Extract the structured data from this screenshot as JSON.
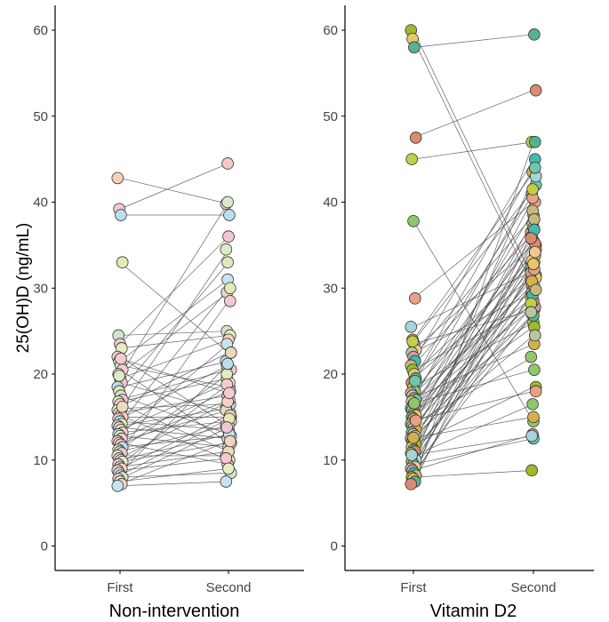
{
  "chart_data": {
    "type": "scatter",
    "description_of_marks": "paired points connected by lines (first vs second measurement)",
    "ylabel": "25(OH)D (ng/mL)",
    "ylim": [
      0,
      62
    ],
    "yticks": [
      0,
      10,
      20,
      30,
      40,
      50,
      60
    ],
    "categories": [
      "First",
      "Second"
    ],
    "grid": false,
    "panels": [
      {
        "label": "Non-intervention",
        "pairs": [
          [
            42.8,
            39.8
          ],
          [
            39.2,
            44.5
          ],
          [
            38.5,
            38.5
          ],
          [
            33.0,
            22.5
          ],
          [
            24.5,
            25.0
          ],
          [
            23.5,
            36.0
          ],
          [
            23.0,
            24.5
          ],
          [
            22.0,
            14.0
          ],
          [
            21.5,
            31.0
          ],
          [
            21.0,
            18.5
          ],
          [
            20.5,
            12.0
          ],
          [
            20.0,
            29.5
          ],
          [
            19.5,
            24.0
          ],
          [
            19.0,
            15.5
          ],
          [
            18.5,
            21.5
          ],
          [
            18.0,
            33.0
          ],
          [
            17.5,
            13.0
          ],
          [
            17.0,
            20.5
          ],
          [
            16.8,
            19.5
          ],
          [
            16.5,
            11.0
          ],
          [
            16.0,
            16.5
          ],
          [
            15.8,
            34.5
          ],
          [
            15.5,
            17.5
          ],
          [
            15.2,
            10.0
          ],
          [
            15.0,
            15.0
          ],
          [
            14.8,
            21.0
          ],
          [
            14.5,
            13.5
          ],
          [
            14.2,
            30.0
          ],
          [
            14.0,
            16.0
          ],
          [
            13.8,
            12.5
          ],
          [
            13.5,
            19.0
          ],
          [
            13.2,
            14.5
          ],
          [
            13.0,
            23.5
          ],
          [
            12.8,
            11.5
          ],
          [
            12.5,
            18.0
          ],
          [
            12.2,
            15.8
          ],
          [
            12.0,
            9.5
          ],
          [
            11.8,
            17.0
          ],
          [
            11.5,
            12.8
          ],
          [
            11.2,
            20.0
          ],
          [
            11.0,
            14.0
          ],
          [
            10.8,
            28.5
          ],
          [
            10.5,
            10.5
          ],
          [
            10.2,
            16.8
          ],
          [
            10.0,
            13.0
          ],
          [
            9.8,
            12.0
          ],
          [
            9.5,
            18.8
          ],
          [
            9.2,
            11.0
          ],
          [
            9.0,
            15.2
          ],
          [
            8.8,
            10.2
          ],
          [
            8.5,
            21.2
          ],
          [
            8.2,
            14.8
          ],
          [
            8.0,
            8.5
          ],
          [
            7.8,
            13.8
          ],
          [
            7.5,
            9.0
          ],
          [
            7.2,
            12.2
          ],
          [
            7.0,
            7.5
          ],
          [
            19.8,
            40.0
          ],
          [
            21.8,
            17.8
          ],
          [
            16.2,
            22.5
          ]
        ],
        "colors": [
          "#f6d0b8",
          "#f7c7c9",
          "#b9def0",
          "#e3e9b7",
          "#cfe6cc",
          "#f2c7cf",
          "#e6ecc0",
          "#f4d2c3",
          "#c5e4ee",
          "#dbeac8",
          "#f3cbd0",
          "#ecd9bd"
        ]
      },
      {
        "label": "Vitamin D2",
        "pairs": [
          [
            60.0,
            31.0
          ],
          [
            59.0,
            30.0
          ],
          [
            58.0,
            59.5
          ],
          [
            47.5,
            53.0
          ],
          [
            45.0,
            47.0
          ],
          [
            37.8,
            14.5
          ],
          [
            28.8,
            40.0
          ],
          [
            25.5,
            32.0
          ],
          [
            24.0,
            43.5
          ],
          [
            23.5,
            27.5
          ],
          [
            22.8,
            35.0
          ],
          [
            22.5,
            29.5
          ],
          [
            22.0,
            38.5
          ],
          [
            21.5,
            45.0
          ],
          [
            21.0,
            36.5
          ],
          [
            20.5,
            28.0
          ],
          [
            20.0,
            33.0
          ],
          [
            19.5,
            31.5
          ],
          [
            19.0,
            41.0
          ],
          [
            18.5,
            26.0
          ],
          [
            18.0,
            34.0
          ],
          [
            17.8,
            29.0
          ],
          [
            17.5,
            37.5
          ],
          [
            17.2,
            23.5
          ],
          [
            17.0,
            42.0
          ],
          [
            16.8,
            30.5
          ],
          [
            16.5,
            35.5
          ],
          [
            16.2,
            27.8
          ],
          [
            16.0,
            32.5
          ],
          [
            15.8,
            39.0
          ],
          [
            15.5,
            25.5
          ],
          [
            15.2,
            31.2
          ],
          [
            15.0,
            36.0
          ],
          [
            14.8,
            28.5
          ],
          [
            14.5,
            33.8
          ],
          [
            14.2,
            22.0
          ],
          [
            14.0,
            40.5
          ],
          [
            13.8,
            30.2
          ],
          [
            13.5,
            34.5
          ],
          [
            13.2,
            27.0
          ],
          [
            13.0,
            37.0
          ],
          [
            12.8,
            24.5
          ],
          [
            12.5,
            31.8
          ],
          [
            12.2,
            29.2
          ],
          [
            12.0,
            38.0
          ],
          [
            11.8,
            18.5
          ],
          [
            11.5,
            33.2
          ],
          [
            11.2,
            26.8
          ],
          [
            11.0,
            35.2
          ],
          [
            10.8,
            28.2
          ],
          [
            10.5,
            16.5
          ],
          [
            10.2,
            32.2
          ],
          [
            10.0,
            43.0
          ],
          [
            9.8,
            30.8
          ],
          [
            9.5,
            12.5
          ],
          [
            9.2,
            34.2
          ],
          [
            9.0,
            27.2
          ],
          [
            8.8,
            13.0
          ],
          [
            8.5,
            36.8
          ],
          [
            8.2,
            29.8
          ],
          [
            8.0,
            8.8
          ],
          [
            7.8,
            32.8
          ],
          [
            7.5,
            47.0
          ],
          [
            7.2,
            35.8
          ],
          [
            23.8,
            41.5
          ],
          [
            16.6,
            20.5
          ],
          [
            14.6,
            18.0
          ],
          [
            10.6,
            12.8
          ],
          [
            12.6,
            15.0
          ],
          [
            19.2,
            44.0
          ]
        ],
        "colors": [
          "#9dbb2a",
          "#e8c56e",
          "#56b48c",
          "#d98a70",
          "#c3ce45",
          "#8fc86b",
          "#e9a183",
          "#a7d4d8",
          "#d6b14b",
          "#6fc7a8",
          "#f0c98e",
          "#b8c7a0",
          "#cf9aa0",
          "#45b8b0",
          "#c9b87a"
        ]
      }
    ]
  }
}
